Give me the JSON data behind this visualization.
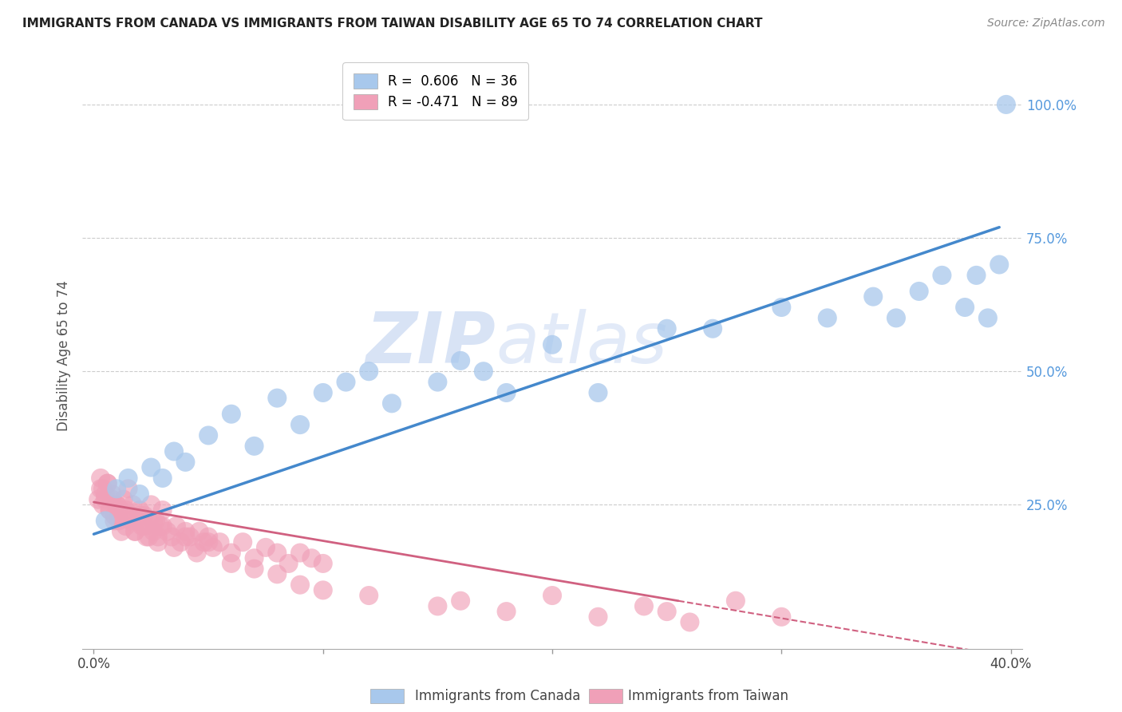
{
  "title": "IMMIGRANTS FROM CANADA VS IMMIGRANTS FROM TAIWAN DISABILITY AGE 65 TO 74 CORRELATION CHART",
  "source": "Source: ZipAtlas.com",
  "xlabel_canada": "Immigrants from Canada",
  "xlabel_taiwan": "Immigrants from Taiwan",
  "ylabel": "Disability Age 65 to 74",
  "legend_canada": "R =  0.606   N = 36",
  "legend_taiwan": "R = -0.471   N = 89",
  "xlim": [
    -0.005,
    0.405
  ],
  "ylim": [
    -0.02,
    1.08
  ],
  "color_canada": "#A8C8EC",
  "color_taiwan": "#F0A0B8",
  "color_line_canada": "#4488CC",
  "color_line_taiwan": "#D06080",
  "watermark_zip": "ZIP",
  "watermark_atlas": "atlas",
  "canada_x": [
    0.005,
    0.01,
    0.015,
    0.02,
    0.025,
    0.03,
    0.035,
    0.04,
    0.05,
    0.06,
    0.07,
    0.08,
    0.09,
    0.1,
    0.11,
    0.12,
    0.13,
    0.15,
    0.16,
    0.17,
    0.18,
    0.2,
    0.22,
    0.25,
    0.27,
    0.3,
    0.32,
    0.34,
    0.35,
    0.36,
    0.37,
    0.38,
    0.385,
    0.39,
    0.395,
    0.398
  ],
  "canada_y": [
    0.22,
    0.28,
    0.3,
    0.27,
    0.32,
    0.3,
    0.35,
    0.33,
    0.38,
    0.42,
    0.36,
    0.45,
    0.4,
    0.46,
    0.48,
    0.5,
    0.44,
    0.48,
    0.52,
    0.5,
    0.46,
    0.55,
    0.46,
    0.58,
    0.58,
    0.62,
    0.6,
    0.64,
    0.6,
    0.65,
    0.68,
    0.62,
    0.68,
    0.6,
    0.7,
    1.0
  ],
  "taiwan_x": [
    0.002,
    0.003,
    0.004,
    0.005,
    0.006,
    0.007,
    0.008,
    0.009,
    0.01,
    0.011,
    0.012,
    0.013,
    0.014,
    0.015,
    0.016,
    0.017,
    0.018,
    0.019,
    0.02,
    0.021,
    0.022,
    0.023,
    0.024,
    0.025,
    0.026,
    0.027,
    0.028,
    0.029,
    0.03,
    0.032,
    0.034,
    0.036,
    0.038,
    0.04,
    0.042,
    0.044,
    0.046,
    0.048,
    0.05,
    0.052,
    0.055,
    0.06,
    0.065,
    0.07,
    0.075,
    0.08,
    0.085,
    0.09,
    0.095,
    0.1,
    0.003,
    0.004,
    0.005,
    0.006,
    0.007,
    0.008,
    0.009,
    0.01,
    0.011,
    0.012,
    0.014,
    0.016,
    0.018,
    0.02,
    0.022,
    0.024,
    0.026,
    0.028,
    0.03,
    0.035,
    0.04,
    0.045,
    0.05,
    0.06,
    0.07,
    0.08,
    0.09,
    0.1,
    0.12,
    0.15,
    0.16,
    0.18,
    0.2,
    0.22,
    0.24,
    0.25,
    0.26,
    0.28,
    0.3
  ],
  "taiwan_y": [
    0.26,
    0.28,
    0.25,
    0.27,
    0.29,
    0.24,
    0.26,
    0.23,
    0.25,
    0.22,
    0.24,
    0.26,
    0.21,
    0.28,
    0.23,
    0.25,
    0.2,
    0.22,
    0.24,
    0.21,
    0.23,
    0.19,
    0.22,
    0.25,
    0.2,
    0.22,
    0.19,
    0.21,
    0.24,
    0.2,
    0.19,
    0.21,
    0.18,
    0.2,
    0.19,
    0.17,
    0.2,
    0.18,
    0.19,
    0.17,
    0.18,
    0.16,
    0.18,
    0.15,
    0.17,
    0.16,
    0.14,
    0.16,
    0.15,
    0.14,
    0.3,
    0.28,
    0.26,
    0.29,
    0.24,
    0.27,
    0.22,
    0.25,
    0.23,
    0.2,
    0.24,
    0.22,
    0.2,
    0.23,
    0.21,
    0.19,
    0.22,
    0.18,
    0.21,
    0.17,
    0.19,
    0.16,
    0.18,
    0.14,
    0.13,
    0.12,
    0.1,
    0.09,
    0.08,
    0.06,
    0.07,
    0.05,
    0.08,
    0.04,
    0.06,
    0.05,
    0.03,
    0.07,
    0.04
  ],
  "canada_line_x0": 0.0,
  "canada_line_y0": 0.195,
  "canada_line_x1": 0.395,
  "canada_line_y1": 0.77,
  "taiwan_line_solid_x0": 0.0,
  "taiwan_line_solid_y0": 0.255,
  "taiwan_line_solid_x1": 0.255,
  "taiwan_line_solid_y1": 0.07,
  "taiwan_line_dash_x0": 0.255,
  "taiwan_line_dash_y0": 0.07,
  "taiwan_line_dash_x1": 0.4,
  "taiwan_line_dash_y1": -0.035
}
